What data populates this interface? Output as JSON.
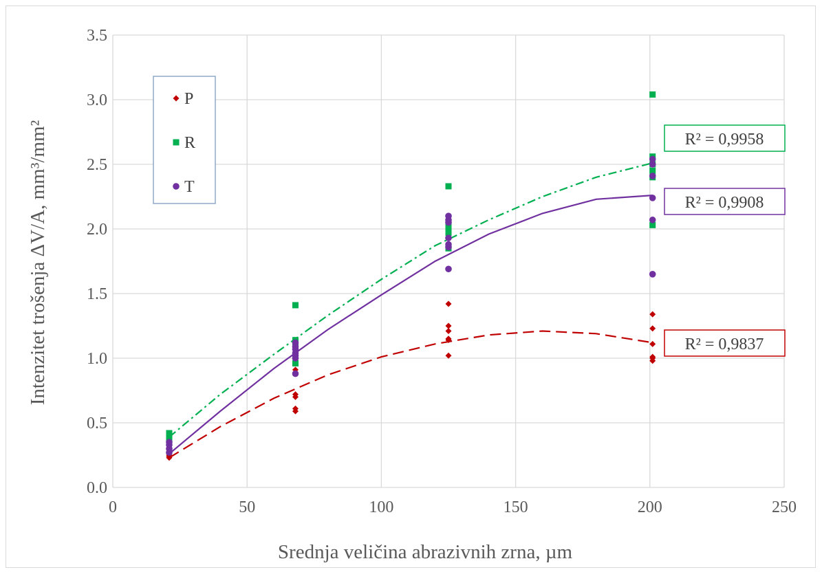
{
  "chart_data": {
    "type": "scatter",
    "xlabel": "Srednja veličina abrazivnih zrna, µm",
    "ylabel": "Intenzitet trošenja ΔV/A, mm³/mm²",
    "xlim": [
      0,
      250
    ],
    "ylim": [
      0,
      3.5
    ],
    "x_ticks": [
      "0",
      "50",
      "100",
      "150",
      "200",
      "250"
    ],
    "y_ticks": [
      "0.0",
      "0.5",
      "1.0",
      "1.5",
      "2.0",
      "2.5",
      "3.0",
      "3.5"
    ],
    "grid": true,
    "legend_position": "top-left",
    "series": [
      {
        "name": "P",
        "color": "#c00000",
        "marker": "diamond",
        "points": [
          [
            21,
            0.23
          ],
          [
            21,
            0.24
          ],
          [
            21,
            0.25
          ],
          [
            21,
            0.26
          ],
          [
            21,
            0.27
          ],
          [
            21,
            0.29
          ],
          [
            68,
            0.59
          ],
          [
            68,
            0.61
          ],
          [
            68,
            0.7
          ],
          [
            68,
            0.72
          ],
          [
            68,
            0.89
          ],
          [
            68,
            0.91
          ],
          [
            125,
            1.02
          ],
          [
            125,
            1.14
          ],
          [
            125,
            1.15
          ],
          [
            125,
            1.21
          ],
          [
            125,
            1.25
          ],
          [
            125,
            1.42
          ],
          [
            201,
            0.98
          ],
          [
            201,
            1.0
          ],
          [
            201,
            1.01
          ],
          [
            201,
            1.11
          ],
          [
            201,
            1.23
          ],
          [
            201,
            1.34
          ]
        ],
        "trendline": {
          "style": "dashed",
          "r2_label": "R² = 0,9837",
          "points": [
            [
              21,
              0.23
            ],
            [
              40,
              0.47
            ],
            [
              60,
              0.69
            ],
            [
              80,
              0.87
            ],
            [
              100,
              1.01
            ],
            [
              120,
              1.11
            ],
            [
              140,
              1.18
            ],
            [
              160,
              1.21
            ],
            [
              180,
              1.19
            ],
            [
              201,
              1.12
            ]
          ]
        }
      },
      {
        "name": "R",
        "color": "#00b050",
        "marker": "square",
        "points": [
          [
            21,
            0.38
          ],
          [
            21,
            0.4
          ],
          [
            21,
            0.42
          ],
          [
            68,
            0.96
          ],
          [
            68,
            1.09
          ],
          [
            68,
            1.12
          ],
          [
            68,
            1.14
          ],
          [
            68,
            1.41
          ],
          [
            125,
            1.85
          ],
          [
            125,
            1.97
          ],
          [
            125,
            2.0
          ],
          [
            125,
            2.03
          ],
          [
            125,
            2.33
          ],
          [
            201,
            2.03
          ],
          [
            201,
            2.4
          ],
          [
            201,
            2.45
          ],
          [
            201,
            2.5
          ],
          [
            201,
            2.56
          ],
          [
            201,
            3.04
          ]
        ],
        "trendline": {
          "style": "dash-dot",
          "r2_label": "R² = 0,9958",
          "points": [
            [
              21,
              0.39
            ],
            [
              40,
              0.72
            ],
            [
              60,
              1.03
            ],
            [
              80,
              1.33
            ],
            [
              100,
              1.61
            ],
            [
              120,
              1.87
            ],
            [
              140,
              2.07
            ],
            [
              160,
              2.25
            ],
            [
              180,
              2.4
            ],
            [
              201,
              2.51
            ]
          ]
        }
      },
      {
        "name": "T",
        "color": "#7030a0",
        "marker": "circle",
        "points": [
          [
            21,
            0.27
          ],
          [
            21,
            0.3
          ],
          [
            21,
            0.33
          ],
          [
            21,
            0.35
          ],
          [
            68,
            0.88
          ],
          [
            68,
            1.0
          ],
          [
            68,
            1.02
          ],
          [
            68,
            1.04
          ],
          [
            68,
            1.07
          ],
          [
            68,
            1.09
          ],
          [
            68,
            1.12
          ],
          [
            125,
            1.69
          ],
          [
            125,
            1.86
          ],
          [
            125,
            1.88
          ],
          [
            125,
            1.93
          ],
          [
            125,
            2.05
          ],
          [
            125,
            2.07
          ],
          [
            125,
            2.1
          ],
          [
            201,
            1.65
          ],
          [
            201,
            2.07
          ],
          [
            201,
            2.24
          ],
          [
            201,
            2.41
          ],
          [
            201,
            2.5
          ],
          [
            201,
            2.54
          ]
        ],
        "trendline": {
          "style": "solid",
          "r2_label": "R² = 0,9908",
          "points": [
            [
              21,
              0.26
            ],
            [
              40,
              0.59
            ],
            [
              60,
              0.92
            ],
            [
              80,
              1.22
            ],
            [
              100,
              1.49
            ],
            [
              120,
              1.75
            ],
            [
              140,
              1.96
            ],
            [
              160,
              2.12
            ],
            [
              180,
              2.23
            ],
            [
              201,
              2.26
            ]
          ]
        }
      }
    ]
  }
}
